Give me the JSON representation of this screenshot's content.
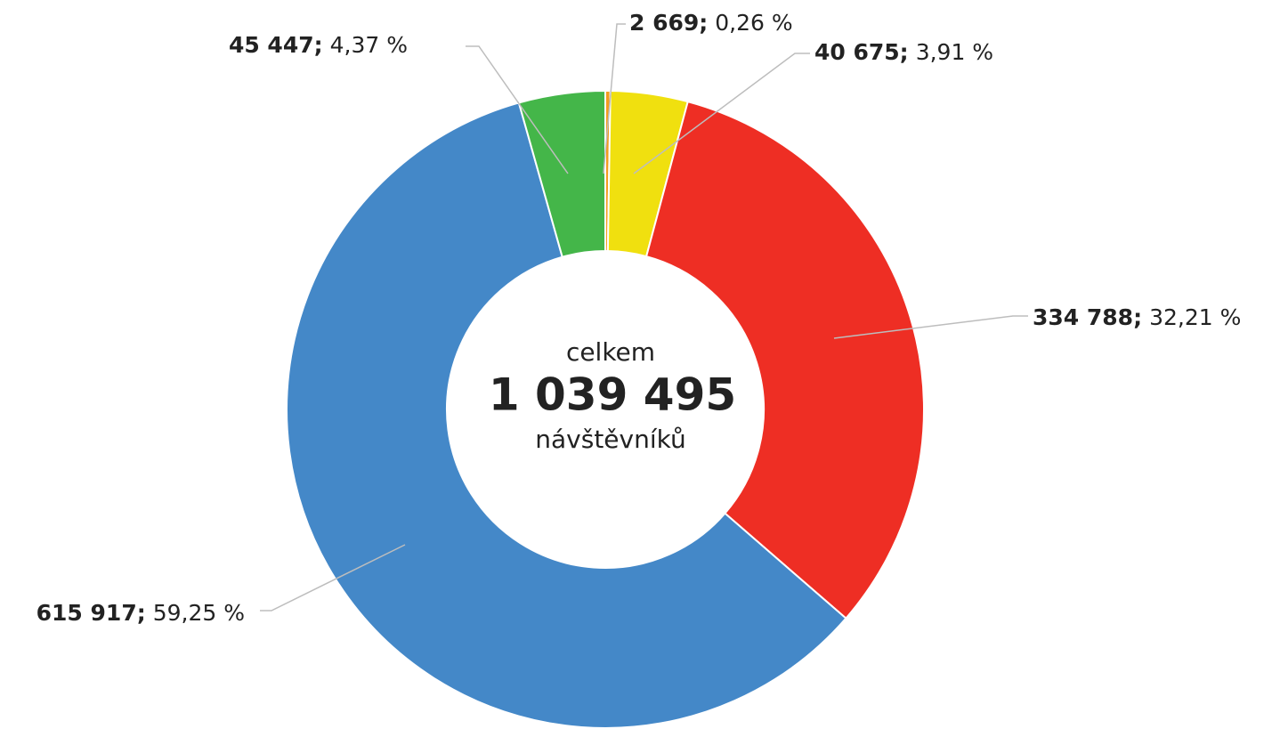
{
  "chart_data": {
    "type": "donut",
    "categories": [
      null,
      null,
      null,
      null,
      null
    ],
    "values": [
      2669,
      40675,
      334788,
      615917,
      45447
    ],
    "value_labels": [
      "2 669;",
      "40 675;",
      "334 788;",
      "615 917;",
      "45 447;"
    ],
    "percent_labels": [
      "0,26 %",
      "3,91 %",
      "32,21 %",
      "59,25 %",
      "4,37 %"
    ],
    "colors": [
      "#f39c1f",
      "#f0e00f",
      "#ee2e24",
      "#4488c8",
      "#44b649"
    ],
    "center_caption": "celkem",
    "center_total": "1 039 495",
    "center_unit": "návštěvníků"
  }
}
